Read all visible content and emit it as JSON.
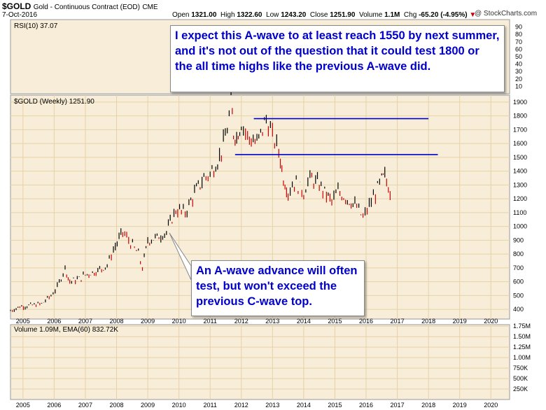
{
  "header": {
    "symbol": "$GOLD",
    "subtitle": "Gold - Continuous Contract (EOD)",
    "exchange": "CME",
    "date": "7-Oct-2016",
    "open_label": "Open",
    "open": "1321.00",
    "high_label": "High",
    "high": "1322.60",
    "low_label": "Low",
    "low": "1243.20",
    "close_label": "Close",
    "close": "1251.90",
    "volume_label": "Volume",
    "volume": "1.1M",
    "chg_label": "Chg",
    "chg": "-65.20 (-4.95%)",
    "brand": "@ StockCharts.com"
  },
  "annotations": {
    "top": "I expect this A-wave to at least reach 1550 by next summer, and it's not out of the question that it could test 1800 or the all time highs like the previous A-wave did.",
    "bottom": "An A-wave advance will often test, but won't exceed the previous C-wave top."
  },
  "colors": {
    "panel_bg": "#f7edd8",
    "grid": "#e6d2a8",
    "price_line": "#000000",
    "down_bar": "#cc0000",
    "hline": "#0000cc",
    "callout_text": "#0000cc"
  },
  "chart_data": [
    {
      "type": "line",
      "label": "RSI(10) 37.07",
      "ylim": [
        0,
        100
      ],
      "y_ticks": [
        10,
        20,
        30,
        40,
        50,
        60,
        70,
        80,
        90
      ],
      "series": [],
      "note_visible": "mostly hidden behind callout"
    },
    {
      "type": "line",
      "label": "$GOLD (Weekly) 1251.90",
      "ylim": [
        330,
        1950
      ],
      "y_ticks": [
        400,
        500,
        600,
        700,
        800,
        900,
        1000,
        1100,
        1200,
        1300,
        1400,
        1500,
        1600,
        1700,
        1800,
        1900
      ],
      "x_ticks": [
        "2005",
        "2006",
        "2007",
        "2008",
        "2009",
        "2010",
        "2011",
        "2012",
        "2013",
        "2014",
        "2015",
        "2016",
        "2017",
        "2018",
        "2019",
        "2020"
      ],
      "series": [
        {
          "x": [
            2004.6,
            2004.9,
            2005.3,
            2005.6,
            2005.9,
            2006.1,
            2006.35,
            2006.5,
            2006.8,
            2007.0,
            2007.4,
            2007.7,
            2007.9,
            2008.2,
            2008.45,
            2008.7,
            2008.83,
            2009.0,
            2009.3,
            2009.6,
            2009.9,
            2010.2,
            2010.5,
            2010.8,
            2011.0,
            2011.3,
            2011.55,
            2011.67,
            2011.75,
            2011.85,
            2012.0,
            2012.2,
            2012.5,
            2012.8,
            2013.0,
            2013.2,
            2013.35,
            2013.5,
            2013.7,
            2014.0,
            2014.2,
            2014.5,
            2014.9,
            2015.1,
            2015.4,
            2015.7,
            2015.9,
            2016.1,
            2016.3,
            2016.5,
            2016.6,
            2016.77
          ],
          "y": [
            390,
            420,
            430,
            440,
            500,
            560,
            700,
            600,
            620,
            650,
            680,
            720,
            830,
            960,
            880,
            800,
            700,
            900,
            920,
            960,
            1120,
            1100,
            1240,
            1350,
            1380,
            1500,
            1700,
            1900,
            1680,
            1650,
            1750,
            1650,
            1600,
            1780,
            1650,
            1550,
            1350,
            1250,
            1320,
            1250,
            1350,
            1300,
            1180,
            1250,
            1200,
            1140,
            1060,
            1150,
            1240,
            1340,
            1360,
            1252
          ]
        }
      ],
      "hlines": [
        {
          "y": 1780,
          "x_from": 2012.4,
          "x_to": 2018.0
        },
        {
          "y": 1520,
          "x_from": 2011.8,
          "x_to": 2018.3
        }
      ]
    },
    {
      "type": "bar",
      "label": "Volume 1.09M, EMA(60) 832.72K",
      "y_ticks": [
        "250K",
        "500K",
        "750K",
        "1.00M",
        "1.25M",
        "1.50M",
        "1.75M"
      ],
      "series": []
    }
  ]
}
